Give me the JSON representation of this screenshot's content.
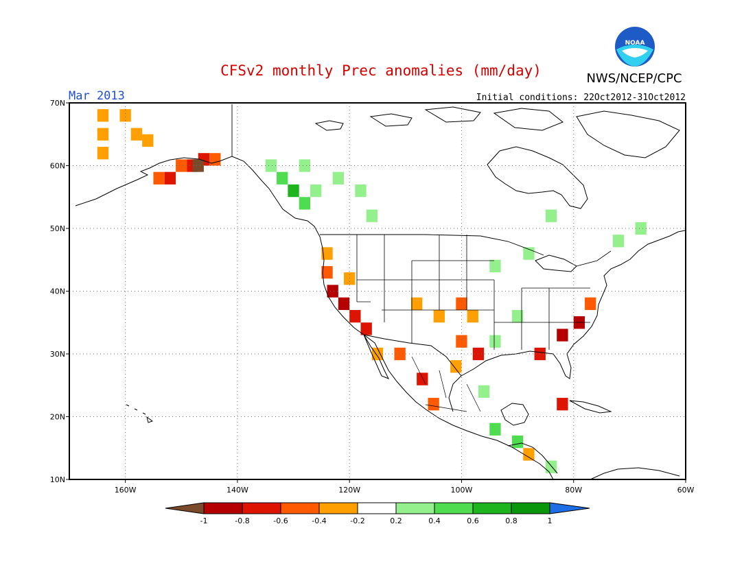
{
  "header": {
    "title": "CFSv2 monthly Prec anomalies (mm/day)",
    "title_color": "#d40000",
    "month": "Mar 2013",
    "month_color": "#1f4fd6",
    "initial_conditions": "Initial conditions: 22Oct2012-31Oct2012",
    "agency": "NWS/NCEP/CPC",
    "logo_text": "NOAA"
  },
  "map": {
    "lon_range": [
      -170,
      -60
    ],
    "lat_range": [
      10,
      70
    ],
    "x_ticks": [
      {
        "lon": -160,
        "label": "160W"
      },
      {
        "lon": -140,
        "label": "140W"
      },
      {
        "lon": -120,
        "label": "120W"
      },
      {
        "lon": -100,
        "label": "100W"
      },
      {
        "lon": -80,
        "label": "80W"
      },
      {
        "lon": -60,
        "label": "60W"
      }
    ],
    "y_ticks": [
      {
        "lat": 70,
        "label": "70N"
      },
      {
        "lat": 60,
        "label": "60N"
      },
      {
        "lat": 50,
        "label": "50N"
      },
      {
        "lat": 40,
        "label": "40N"
      },
      {
        "lat": 30,
        "label": "30N"
      },
      {
        "lat": 20,
        "label": "20N"
      },
      {
        "lat": 10,
        "label": "10N"
      }
    ],
    "grid": true
  },
  "colorbar": {
    "labels": [
      "-1",
      "-0.8",
      "-0.6",
      "-0.4",
      "-0.2",
      "0.2",
      "0.4",
      "0.6",
      "0.8",
      "1"
    ],
    "colors": [
      "#7a4a2a",
      "#b40000",
      "#dc1400",
      "#ff5a00",
      "#ff9f00",
      "#ffffff",
      "#94f08c",
      "#50dc50",
      "#1eb41e",
      "#0a960a",
      "#1e6ee6"
    ]
  },
  "chart_data": {
    "type": "heatmap",
    "title": "CFSv2 monthly Prec anomalies (mm/day)",
    "units": "mm/day",
    "grid_step_deg": 2,
    "levels": [
      -1,
      -0.8,
      -0.6,
      -0.4,
      -0.2,
      0.2,
      0.4,
      0.6,
      0.8,
      1
    ],
    "cells": [
      {
        "lon": -164,
        "lat": 68,
        "v": -0.3
      },
      {
        "lon": -160,
        "lat": 68,
        "v": -0.3
      },
      {
        "lon": -164,
        "lat": 65,
        "v": -0.3
      },
      {
        "lon": -158,
        "lat": 65,
        "v": -0.3
      },
      {
        "lon": -156,
        "lat": 64,
        "v": -0.3
      },
      {
        "lon": -164,
        "lat": 62,
        "v": -0.3
      },
      {
        "lon": -154,
        "lat": 58,
        "v": -0.5
      },
      {
        "lon": -152,
        "lat": 58,
        "v": -0.7
      },
      {
        "lon": -150,
        "lat": 60,
        "v": -0.5
      },
      {
        "lon": -148,
        "lat": 60,
        "v": -0.7
      },
      {
        "lon": -146,
        "lat": 61,
        "v": -0.7
      },
      {
        "lon": -144,
        "lat": 61,
        "v": -0.5
      },
      {
        "lon": -147,
        "lat": 60,
        "v": -1.1
      },
      {
        "lon": -134,
        "lat": 60,
        "v": 0.3
      },
      {
        "lon": -132,
        "lat": 58,
        "v": 0.5
      },
      {
        "lon": -130,
        "lat": 56,
        "v": 0.7
      },
      {
        "lon": -128,
        "lat": 54,
        "v": 0.5
      },
      {
        "lon": -126,
        "lat": 56,
        "v": 0.3
      },
      {
        "lon": -128,
        "lat": 60,
        "v": 0.3
      },
      {
        "lon": -122,
        "lat": 58,
        "v": 0.3
      },
      {
        "lon": -118,
        "lat": 56,
        "v": 0.3
      },
      {
        "lon": -116,
        "lat": 52,
        "v": 0.3
      },
      {
        "lon": -124,
        "lat": 46,
        "v": -0.3
      },
      {
        "lon": -124,
        "lat": 43,
        "v": -0.5
      },
      {
        "lon": -120,
        "lat": 42,
        "v": -0.3
      },
      {
        "lon": -123,
        "lat": 40,
        "v": -0.9
      },
      {
        "lon": -121,
        "lat": 38,
        "v": -0.9
      },
      {
        "lon": -119,
        "lat": 36,
        "v": -0.7
      },
      {
        "lon": -117,
        "lat": 34,
        "v": -0.7
      },
      {
        "lon": -115,
        "lat": 30,
        "v": -0.3
      },
      {
        "lon": -111,
        "lat": 30,
        "v": -0.5
      },
      {
        "lon": -107,
        "lat": 26,
        "v": -0.7
      },
      {
        "lon": -105,
        "lat": 22,
        "v": -0.5
      },
      {
        "lon": -108,
        "lat": 38,
        "v": -0.3
      },
      {
        "lon": -104,
        "lat": 36,
        "v": -0.3
      },
      {
        "lon": -100,
        "lat": 38,
        "v": -0.5
      },
      {
        "lon": -98,
        "lat": 36,
        "v": -0.3
      },
      {
        "lon": -100,
        "lat": 32,
        "v": -0.5
      },
      {
        "lon": -97,
        "lat": 30,
        "v": -0.7
      },
      {
        "lon": -101,
        "lat": 28,
        "v": -0.3
      },
      {
        "lon": -86,
        "lat": 30,
        "v": -0.7
      },
      {
        "lon": -82,
        "lat": 33,
        "v": -0.9
      },
      {
        "lon": -79,
        "lat": 35,
        "v": -0.9
      },
      {
        "lon": -77,
        "lat": 38,
        "v": -0.5
      },
      {
        "lon": -82,
        "lat": 22,
        "v": -0.7
      },
      {
        "lon": -94,
        "lat": 44,
        "v": 0.3
      },
      {
        "lon": -88,
        "lat": 46,
        "v": 0.3
      },
      {
        "lon": -84,
        "lat": 52,
        "v": 0.3
      },
      {
        "lon": -72,
        "lat": 48,
        "v": 0.3
      },
      {
        "lon": -68,
        "lat": 50,
        "v": 0.3
      },
      {
        "lon": -90,
        "lat": 36,
        "v": 0.3
      },
      {
        "lon": -94,
        "lat": 32,
        "v": 0.3
      },
      {
        "lon": -96,
        "lat": 24,
        "v": 0.3
      },
      {
        "lon": -94,
        "lat": 18,
        "v": 0.5
      },
      {
        "lon": -90,
        "lat": 16,
        "v": 0.5
      },
      {
        "lon": -84,
        "lat": 12,
        "v": 0.3
      },
      {
        "lon": -88,
        "lat": 14,
        "v": -0.3
      }
    ]
  }
}
